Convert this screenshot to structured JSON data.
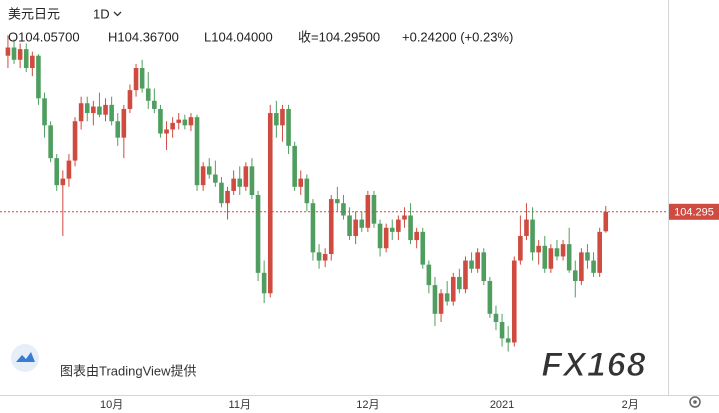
{
  "chart_data": {
    "type": "candlestick",
    "title": "美元日元",
    "interval": "1D",
    "ohlc_header": [
      "O104.05700",
      "H104.36700",
      "L104.04000",
      "收=104.29500",
      "+0.24200 (+0.23%)"
    ],
    "attribution": "图表由TradingView提供",
    "logo": "FX168",
    "up_color": "#cf4a3f",
    "down_color": "#4f9e5f",
    "ylim": [
      102.12,
      106.88
    ],
    "xlim": [
      -1.3,
      108.2
    ],
    "xticks": [
      {
        "value": 17,
        "label": "10月"
      },
      {
        "value": 38,
        "label": "11月"
      },
      {
        "value": 59,
        "label": "12月"
      },
      {
        "value": 81,
        "label": "2021"
      },
      {
        "value": 102,
        "label": "2月"
      }
    ],
    "last_price": 104.295,
    "candles": [
      [
        106.2,
        106.45,
        106.05,
        106.3
      ],
      [
        106.3,
        106.4,
        106.1,
        106.15
      ],
      [
        106.15,
        106.35,
        106.05,
        106.28
      ],
      [
        106.28,
        106.35,
        106.0,
        106.05
      ],
      [
        106.05,
        106.25,
        105.95,
        106.2
      ],
      [
        106.2,
        106.22,
        105.6,
        105.68
      ],
      [
        105.68,
        105.75,
        105.2,
        105.35
      ],
      [
        105.35,
        105.4,
        104.9,
        104.95
      ],
      [
        104.95,
        105.0,
        104.55,
        104.62
      ],
      [
        104.62,
        104.8,
        104.0,
        104.7
      ],
      [
        104.7,
        105.0,
        104.6,
        104.92
      ],
      [
        104.92,
        105.45,
        104.85,
        105.4
      ],
      [
        105.4,
        105.7,
        105.3,
        105.62
      ],
      [
        105.62,
        105.7,
        105.4,
        105.5
      ],
      [
        105.5,
        105.65,
        105.35,
        105.58
      ],
      [
        105.58,
        105.75,
        105.45,
        105.48
      ],
      [
        105.48,
        105.68,
        105.4,
        105.6
      ],
      [
        105.6,
        105.7,
        105.35,
        105.4
      ],
      [
        105.4,
        105.5,
        105.1,
        105.2
      ],
      [
        105.2,
        105.6,
        104.95,
        105.55
      ],
      [
        105.55,
        105.85,
        105.5,
        105.78
      ],
      [
        105.78,
        106.1,
        105.7,
        106.05
      ],
      [
        106.05,
        106.15,
        105.75,
        105.8
      ],
      [
        105.8,
        106.0,
        105.55,
        105.65
      ],
      [
        105.65,
        105.8,
        105.5,
        105.55
      ],
      [
        105.55,
        105.6,
        105.2,
        105.25
      ],
      [
        105.25,
        105.4,
        105.05,
        105.3
      ],
      [
        105.3,
        105.45,
        105.2,
        105.38
      ],
      [
        105.38,
        105.5,
        105.3,
        105.42
      ],
      [
        105.42,
        105.48,
        105.3,
        105.35
      ],
      [
        105.35,
        105.5,
        105.28,
        105.45
      ],
      [
        105.45,
        105.48,
        104.55,
        104.62
      ],
      [
        104.62,
        104.9,
        104.55,
        104.85
      ],
      [
        104.85,
        104.95,
        104.7,
        104.75
      ],
      [
        104.75,
        104.92,
        104.6,
        104.65
      ],
      [
        104.65,
        104.72,
        104.35,
        104.4
      ],
      [
        104.4,
        104.6,
        104.2,
        104.55
      ],
      [
        104.55,
        104.8,
        104.5,
        104.7
      ],
      [
        104.7,
        104.85,
        104.5,
        104.6
      ],
      [
        104.6,
        104.9,
        104.55,
        104.85
      ],
      [
        104.85,
        104.95,
        104.45,
        104.5
      ],
      [
        104.5,
        104.55,
        103.45,
        103.55
      ],
      [
        103.55,
        103.7,
        103.18,
        103.3
      ],
      [
        103.3,
        105.6,
        103.25,
        105.5
      ],
      [
        105.5,
        105.65,
        105.2,
        105.35
      ],
      [
        105.35,
        105.6,
        105.15,
        105.55
      ],
      [
        105.55,
        105.6,
        105.0,
        105.1
      ],
      [
        105.1,
        105.15,
        104.55,
        104.6
      ],
      [
        104.6,
        104.8,
        104.5,
        104.7
      ],
      [
        104.7,
        104.75,
        104.3,
        104.4
      ],
      [
        104.4,
        104.45,
        103.7,
        103.8
      ],
      [
        103.8,
        103.9,
        103.6,
        103.7
      ],
      [
        103.7,
        103.85,
        103.62,
        103.78
      ],
      [
        103.78,
        104.5,
        103.7,
        104.45
      ],
      [
        104.45,
        104.6,
        104.3,
        104.4
      ],
      [
        104.4,
        104.5,
        104.2,
        104.25
      ],
      [
        104.25,
        104.35,
        103.95,
        104.0
      ],
      [
        104.0,
        104.3,
        103.9,
        104.2
      ],
      [
        104.2,
        104.3,
        104.05,
        104.1
      ],
      [
        104.1,
        104.55,
        104.05,
        104.5
      ],
      [
        104.5,
        104.55,
        104.1,
        104.15
      ],
      [
        104.15,
        104.2,
        103.75,
        103.85
      ],
      [
        103.85,
        104.15,
        103.8,
        104.1
      ],
      [
        104.1,
        104.2,
        103.95,
        104.05
      ],
      [
        104.05,
        104.25,
        103.95,
        104.2
      ],
      [
        104.2,
        104.35,
        104.1,
        104.25
      ],
      [
        104.25,
        104.4,
        103.9,
        103.95
      ],
      [
        103.95,
        104.1,
        103.85,
        104.05
      ],
      [
        104.05,
        104.1,
        103.6,
        103.65
      ],
      [
        103.65,
        103.7,
        103.3,
        103.4
      ],
      [
        103.4,
        103.5,
        102.9,
        103.05
      ],
      [
        103.05,
        103.35,
        102.95,
        103.3
      ],
      [
        103.3,
        103.45,
        103.15,
        103.2
      ],
      [
        103.2,
        103.55,
        103.15,
        103.5
      ],
      [
        103.5,
        103.6,
        103.3,
        103.35
      ],
      [
        103.35,
        103.75,
        103.3,
        103.7
      ],
      [
        103.7,
        103.8,
        103.55,
        103.6
      ],
      [
        103.6,
        103.85,
        103.55,
        103.8
      ],
      [
        103.8,
        103.85,
        103.4,
        103.45
      ],
      [
        103.45,
        103.5,
        103.0,
        103.05
      ],
      [
        103.05,
        103.15,
        102.85,
        102.95
      ],
      [
        102.95,
        103.05,
        102.65,
        102.75
      ],
      [
        102.75,
        102.9,
        102.59,
        102.7
      ],
      [
        102.7,
        103.75,
        102.65,
        103.7
      ],
      [
        103.7,
        104.25,
        103.65,
        104.0
      ],
      [
        104.0,
        104.4,
        103.95,
        104.2
      ],
      [
        104.2,
        104.35,
        103.7,
        103.8
      ],
      [
        103.8,
        103.95,
        103.65,
        103.88
      ],
      [
        103.88,
        104.0,
        103.55,
        103.6
      ],
      [
        103.6,
        103.9,
        103.55,
        103.85
      ],
      [
        103.85,
        103.95,
        103.7,
        103.75
      ],
      [
        103.75,
        103.95,
        103.7,
        103.9
      ],
      [
        103.9,
        104.1,
        103.55,
        103.58
      ],
      [
        103.58,
        103.7,
        103.25,
        103.45
      ],
      [
        103.45,
        103.85,
        103.4,
        103.8
      ],
      [
        103.8,
        103.9,
        103.6,
        103.7
      ],
      [
        103.7,
        103.8,
        103.5,
        103.55
      ],
      [
        103.55,
        104.1,
        103.5,
        104.05
      ],
      [
        104.057,
        104.367,
        104.04,
        104.295
      ]
    ]
  }
}
